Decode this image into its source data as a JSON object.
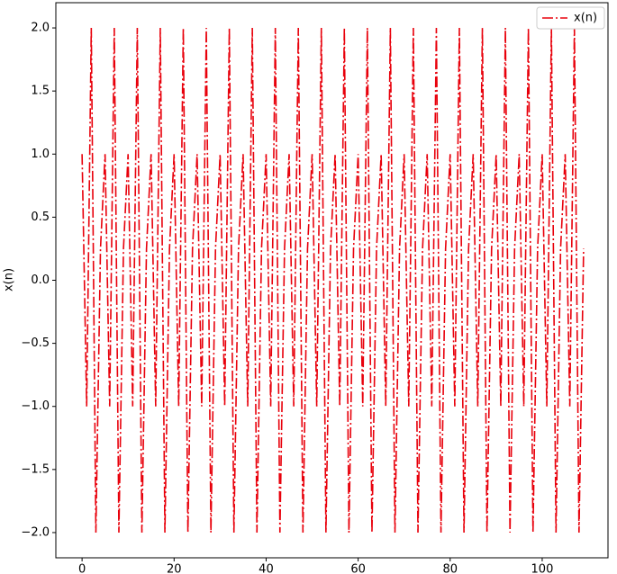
{
  "chart_data": {
    "type": "line",
    "ylabel": "x(n)",
    "xlim": [
      -5.7,
      114.3
    ],
    "xticks": [
      0,
      20,
      40,
      60,
      80,
      100
    ],
    "ylim": [
      -2.2,
      2.2
    ],
    "yticks": [
      {
        "value": -2.0,
        "label": "−2.0"
      },
      {
        "value": -1.5,
        "label": "−1.5"
      },
      {
        "value": -1.0,
        "label": "−1.0"
      },
      {
        "value": -0.5,
        "label": "−0.5"
      },
      {
        "value": 0.0,
        "label": "0.0"
      },
      {
        "value": 0.5,
        "label": "0.5"
      },
      {
        "value": 1.0,
        "label": "1.0"
      },
      {
        "value": 1.5,
        "label": "1.5"
      },
      {
        "value": 2.0,
        "label": "2.0"
      }
    ],
    "grid": false,
    "legend": "upper right",
    "x": [
      0,
      1,
      2,
      3,
      4,
      5,
      6,
      7,
      8,
      9,
      10,
      11,
      12,
      13,
      14,
      15,
      16,
      17,
      18,
      19,
      20,
      21,
      22,
      23,
      24,
      25,
      26,
      27,
      28,
      29,
      30,
      31,
      32,
      33,
      34,
      35,
      36,
      37,
      38,
      39,
      40,
      41,
      42,
      43,
      44,
      45,
      46,
      47,
      48,
      49,
      50,
      51,
      52,
      53,
      54,
      55,
      56,
      57,
      58,
      59,
      60,
      61,
      62,
      63,
      64,
      65,
      66,
      67,
      68,
      69,
      70,
      71,
      72,
      73,
      74,
      75,
      76,
      77,
      78,
      79,
      80,
      81,
      82,
      83,
      84,
      85,
      86,
      87,
      88,
      89,
      90,
      91,
      92,
      93,
      94,
      95,
      96,
      97,
      98,
      99,
      100,
      101,
      102,
      103,
      104,
      105,
      106,
      107,
      108,
      109
    ],
    "series": [
      {
        "name": "x(n)",
        "color": "#e8000b",
        "style": "dashdot",
        "values": [
          1,
          -1,
          2,
          -2,
          0.25,
          1,
          -1,
          2,
          -2,
          0.25,
          1,
          -1,
          2,
          -2,
          0.25,
          1,
          -1,
          2,
          -2,
          0.25,
          1,
          -1,
          2,
          -2,
          0.25,
          1,
          -1,
          2,
          -2,
          0.25,
          1,
          -1,
          2,
          -2,
          0.25,
          1,
          -1,
          2,
          -2,
          0.25,
          1,
          -1,
          2,
          -2,
          0.25,
          1,
          -1,
          2,
          -2,
          0.25,
          1,
          -1,
          2,
          -2,
          0.25,
          1,
          -1,
          2,
          -2,
          0.25,
          1,
          -1,
          2,
          -2,
          0.25,
          1,
          -1,
          2,
          -2,
          0.25,
          1,
          -1,
          2,
          -2,
          0.25,
          1,
          -1,
          2,
          -2,
          0.25,
          1,
          -1,
          2,
          -2,
          0.25,
          1,
          -1,
          2,
          -2,
          0.25,
          1,
          -1,
          2,
          -2,
          0.25,
          1,
          -1,
          2,
          -2,
          0.25,
          1,
          -1,
          2,
          -2,
          0.25,
          1,
          -1,
          2,
          -2,
          0.25
        ]
      }
    ]
  }
}
